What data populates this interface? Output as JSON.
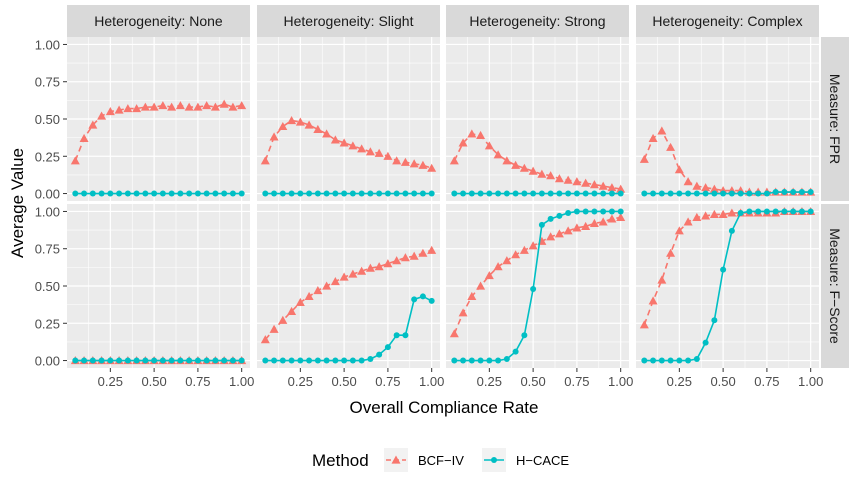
{
  "chart_data": {
    "type": "line",
    "facet_columns": [
      "Heterogeneity: None",
      "Heterogeneity: Slight",
      "Heterogeneity: Strong",
      "Heterogeneity: Complex"
    ],
    "facet_rows": [
      "Measure: FPR",
      "Measure: F−Score"
    ],
    "xlabel": "Overall Compliance Rate",
    "ylabel": "Average Value",
    "xlim": [
      0.05,
      1.0
    ],
    "ylim": [
      0,
      1
    ],
    "x_ticks": [
      "0.25",
      "0.50",
      "0.75",
      "1.00"
    ],
    "y_ticks": [
      "0.00",
      "0.25",
      "0.50",
      "0.75",
      "1.00"
    ],
    "x": [
      0.05,
      0.1,
      0.15,
      0.2,
      0.25,
      0.3,
      0.35,
      0.4,
      0.45,
      0.5,
      0.55,
      0.6,
      0.65,
      0.7,
      0.75,
      0.8,
      0.85,
      0.9,
      0.95,
      1.0
    ],
    "legend": {
      "title": "Method",
      "position": "bottom",
      "entries": [
        {
          "name": "BCF−IV",
          "color": "#F8766D",
          "marker": "triangle",
          "line": "dashed"
        },
        {
          "name": "H−CACE",
          "color": "#00BFC4",
          "marker": "circle",
          "line": "solid"
        }
      ]
    },
    "panels": [
      {
        "row": 0,
        "col": 0,
        "bcf": [
          0.22,
          0.37,
          0.46,
          0.52,
          0.55,
          0.56,
          0.57,
          0.57,
          0.58,
          0.58,
          0.59,
          0.58,
          0.59,
          0.58,
          0.58,
          0.59,
          0.58,
          0.6,
          0.58,
          0.59
        ],
        "hcace": [
          0,
          0,
          0,
          0,
          0,
          0,
          0,
          0,
          0,
          0,
          0,
          0,
          0,
          0,
          0,
          0,
          0,
          0,
          0,
          0
        ]
      },
      {
        "row": 0,
        "col": 1,
        "bcf": [
          0.22,
          0.38,
          0.45,
          0.49,
          0.48,
          0.46,
          0.43,
          0.4,
          0.36,
          0.34,
          0.32,
          0.3,
          0.28,
          0.27,
          0.25,
          0.22,
          0.21,
          0.2,
          0.19,
          0.17
        ],
        "hcace": [
          0,
          0,
          0,
          0,
          0,
          0,
          0,
          0,
          0,
          0,
          0,
          0,
          0,
          0,
          0,
          0,
          0,
          0,
          0,
          0
        ]
      },
      {
        "row": 0,
        "col": 2,
        "bcf": [
          0.22,
          0.34,
          0.4,
          0.39,
          0.32,
          0.26,
          0.22,
          0.19,
          0.17,
          0.15,
          0.13,
          0.12,
          0.1,
          0.09,
          0.08,
          0.07,
          0.06,
          0.05,
          0.04,
          0.03
        ],
        "hcace": [
          0,
          0,
          0,
          0,
          0,
          0,
          0,
          0,
          0,
          0,
          0,
          0,
          0,
          0,
          0,
          0,
          0,
          0,
          0,
          0
        ]
      },
      {
        "row": 0,
        "col": 3,
        "bcf": [
          0.23,
          0.37,
          0.42,
          0.31,
          0.16,
          0.08,
          0.05,
          0.04,
          0.03,
          0.02,
          0.02,
          0.02,
          0.01,
          0.01,
          0.01,
          0.01,
          0.01,
          0.01,
          0.01,
          0.01
        ],
        "hcace": [
          0,
          0,
          0,
          0,
          0,
          0,
          0,
          0,
          0,
          0,
          0,
          0,
          0,
          0,
          0,
          0.01,
          0.01,
          0.01,
          0.01,
          0.01
        ]
      },
      {
        "row": 1,
        "col": 0,
        "bcf": [
          0,
          0,
          0,
          0,
          0,
          0,
          0,
          0,
          0,
          0,
          0,
          0,
          0,
          0,
          0,
          0,
          0,
          0,
          0,
          0
        ],
        "hcace": [
          0,
          0,
          0,
          0,
          0,
          0,
          0,
          0,
          0,
          0,
          0,
          0,
          0,
          0,
          0,
          0,
          0,
          0,
          0,
          0
        ]
      },
      {
        "row": 1,
        "col": 1,
        "bcf": [
          0.14,
          0.21,
          0.27,
          0.33,
          0.39,
          0.43,
          0.47,
          0.5,
          0.53,
          0.56,
          0.58,
          0.6,
          0.62,
          0.63,
          0.65,
          0.67,
          0.69,
          0.7,
          0.72,
          0.74
        ],
        "hcace": [
          0,
          0,
          0,
          0,
          0,
          0,
          0,
          0,
          0,
          0,
          0,
          0,
          0.01,
          0.04,
          0.09,
          0.17,
          0.17,
          0.41,
          0.43,
          0.4
        ]
      },
      {
        "row": 1,
        "col": 2,
        "bcf": [
          0.18,
          0.32,
          0.43,
          0.5,
          0.57,
          0.63,
          0.67,
          0.71,
          0.74,
          0.77,
          0.8,
          0.83,
          0.85,
          0.87,
          0.89,
          0.9,
          0.92,
          0.93,
          0.95,
          0.96
        ],
        "hcace": [
          0,
          0,
          0,
          0,
          0,
          0,
          0.01,
          0.06,
          0.17,
          0.48,
          0.91,
          0.95,
          0.97,
          0.99,
          1.0,
          1.0,
          1.0,
          1.0,
          1.0,
          1.0
        ]
      },
      {
        "row": 1,
        "col": 3,
        "bcf": [
          0.24,
          0.4,
          0.54,
          0.72,
          0.87,
          0.93,
          0.96,
          0.97,
          0.98,
          0.98,
          0.99,
          0.99,
          0.99,
          0.99,
          0.99,
          0.99,
          1.0,
          1.0,
          1.0,
          1.0
        ],
        "hcace": [
          0,
          0,
          0,
          0,
          0,
          0,
          0.01,
          0.12,
          0.27,
          0.61,
          0.87,
          0.99,
          1.0,
          1.0,
          1.0,
          1.0,
          1.0,
          1.0,
          1.0,
          1.0
        ]
      }
    ]
  }
}
